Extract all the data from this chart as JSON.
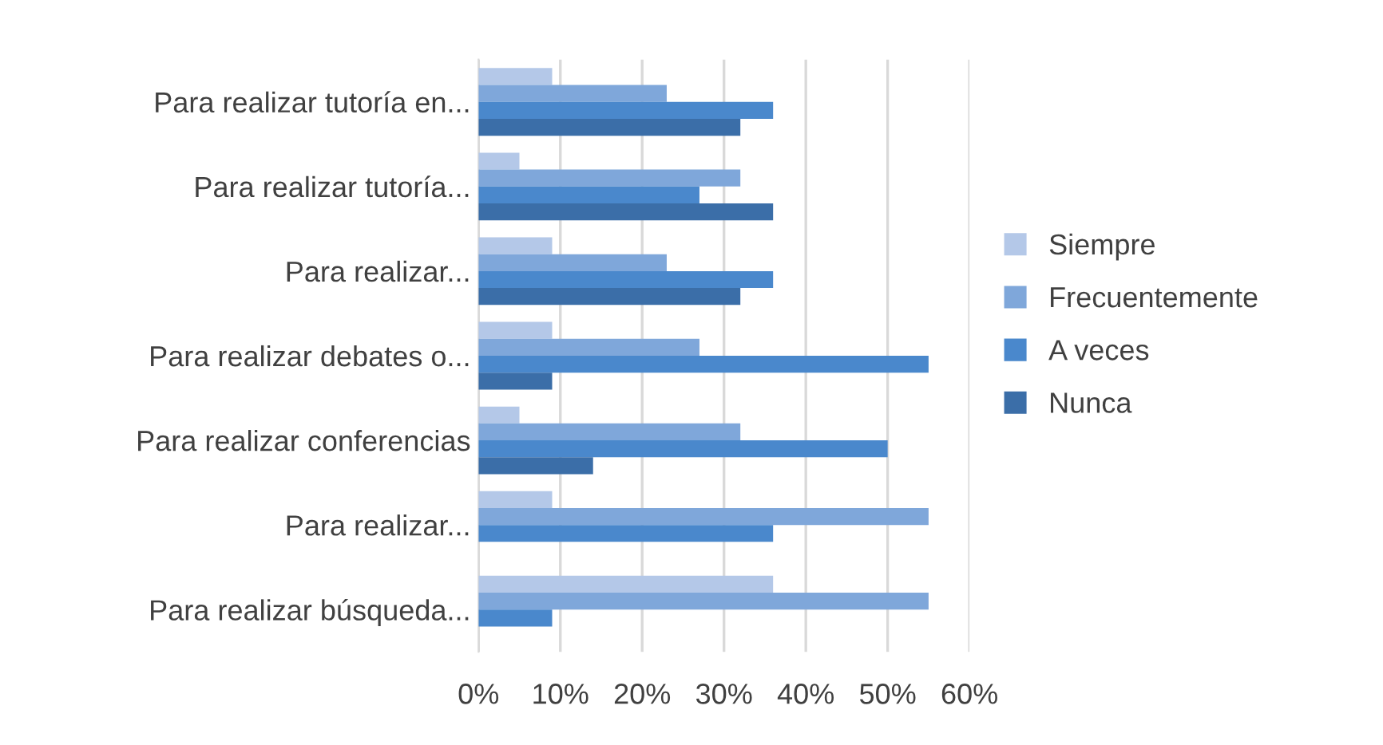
{
  "chart_data": {
    "type": "bar",
    "orientation": "horizontal",
    "categories": [
      "Para realizar tutoría en...",
      "Para realizar tutoría...",
      "Para realizar...",
      "Para realizar debates o...",
      "Para realizar conferencias",
      "Para realizar...",
      "Para realizar búsqueda..."
    ],
    "series": [
      {
        "name": "Siempre",
        "color": "#b4c8e8",
        "values": [
          9,
          5,
          9,
          9,
          5,
          9,
          36
        ]
      },
      {
        "name": "Frecuentemente",
        "color": "#7fa7da",
        "values": [
          23,
          32,
          23,
          27,
          32,
          55,
          55
        ]
      },
      {
        "name": "A veces",
        "color": "#4a88cc",
        "values": [
          36,
          27,
          36,
          55,
          50,
          36,
          9
        ]
      },
      {
        "name": "Nunca",
        "color": "#3b6ea8",
        "values": [
          32,
          36,
          32,
          9,
          14,
          0,
          0
        ]
      }
    ],
    "xlim": [
      0,
      60
    ],
    "xticks": [
      {
        "value": 0,
        "label": "0%"
      },
      {
        "value": 10,
        "label": "10%"
      },
      {
        "value": 20,
        "label": "20%"
      },
      {
        "value": 30,
        "label": "30%"
      },
      {
        "value": 40,
        "label": "40%"
      },
      {
        "value": 50,
        "label": "50%"
      },
      {
        "value": 60,
        "label": "60%"
      }
    ],
    "grid": "x",
    "legend": "right"
  }
}
